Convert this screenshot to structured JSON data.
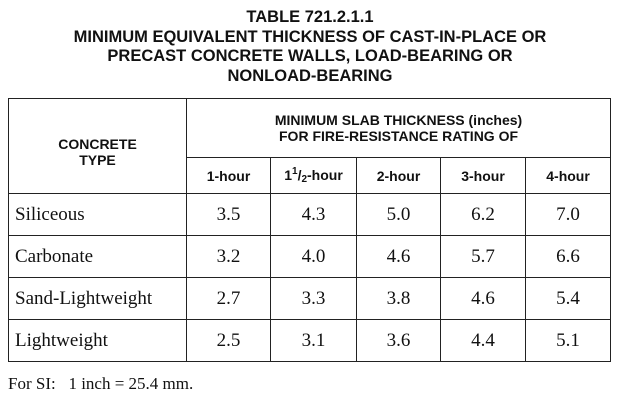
{
  "title": {
    "line1": "TABLE 721.2.1.1",
    "line2": "MINIMUM EQUIVALENT THICKNESS OF CAST-IN-PLACE OR",
    "line3": "PRECAST CONCRETE WALLS, LOAD-BEARING OR",
    "line4": "NONLOAD-BEARING"
  },
  "header": {
    "type_line1": "CONCRETE",
    "type_line2": "TYPE",
    "span_line1": "MINIMUM SLAB THICKNESS (inches)",
    "span_line2": "FOR FIRE-RESISTANCE RATING OF",
    "ratings": {
      "r1": "1-hour",
      "r15_whole": "1",
      "r15_num": "1",
      "r15_slash": "/",
      "r15_den": "2",
      "r15_suffix": "-hour",
      "r2": "2-hour",
      "r3": "3-hour",
      "r4": "4-hour"
    }
  },
  "rows": [
    {
      "type": "Siliceous",
      "v1": "3.5",
      "v15": "4.3",
      "v2": "5.0",
      "v3": "6.2",
      "v4": "7.0"
    },
    {
      "type": "Carbonate",
      "v1": "3.2",
      "v15": "4.0",
      "v2": "4.6",
      "v3": "5.7",
      "v4": "6.6"
    },
    {
      "type": "Sand-Lightweight",
      "v1": "2.7",
      "v15": "3.3",
      "v2": "3.8",
      "v3": "4.6",
      "v4": "5.4"
    },
    {
      "type": "Lightweight",
      "v1": "2.5",
      "v15": "3.1",
      "v2": "3.6",
      "v3": "4.4",
      "v4": "5.1"
    }
  ],
  "footnote": "For SI:   1 inch = 25.4 mm."
}
